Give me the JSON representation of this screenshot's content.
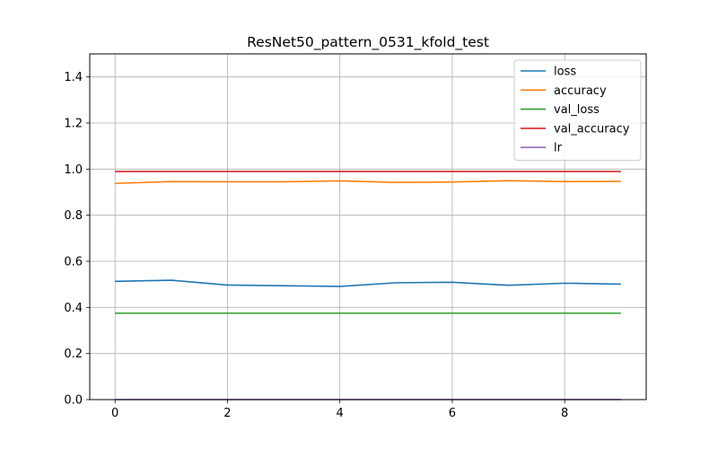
{
  "chart_data": {
    "type": "line",
    "title": "ResNet50_pattern_0531_kfold_test",
    "xlabel": "",
    "ylabel": "",
    "x": [
      0,
      1,
      2,
      3,
      4,
      5,
      6,
      7,
      8,
      9
    ],
    "xlim": [
      -0.45,
      9.45
    ],
    "ylim": [
      0.0,
      1.5
    ],
    "x_ticks": [
      "0",
      "2",
      "4",
      "6",
      "8"
    ],
    "x_tick_values": [
      0,
      2,
      4,
      6,
      8
    ],
    "y_ticks": [
      "0.0",
      "0.2",
      "0.4",
      "0.6",
      "0.8",
      "1.0",
      "1.2",
      "1.4"
    ],
    "y_tick_values": [
      0.0,
      0.2,
      0.4,
      0.6,
      0.8,
      1.0,
      1.2,
      1.4
    ],
    "grid": true,
    "legend_position": "top-right",
    "series": [
      {
        "name": "loss",
        "color": "#1f77b4",
        "values": [
          0.513,
          0.518,
          0.497,
          0.494,
          0.491,
          0.507,
          0.509,
          0.496,
          0.505,
          0.501
        ]
      },
      {
        "name": "accuracy",
        "color": "#ff7f0e",
        "values": [
          0.938,
          0.946,
          0.945,
          0.945,
          0.949,
          0.942,
          0.944,
          0.95,
          0.946,
          0.947
        ]
      },
      {
        "name": "val_loss",
        "color": "#2ca02c",
        "values": [
          0.375,
          0.375,
          0.375,
          0.375,
          0.375,
          0.375,
          0.375,
          0.375,
          0.375,
          0.375
        ]
      },
      {
        "name": "val_accuracy",
        "color": "#d62728",
        "values": [
          0.99,
          0.99,
          0.99,
          0.99,
          0.99,
          0.99,
          0.99,
          0.99,
          0.99,
          0.99
        ]
      },
      {
        "name": "lr",
        "color": "#9467bd",
        "values": [
          0.0001,
          0.0001,
          0.0001,
          0.0001,
          0.0001,
          0.0001,
          0.0001,
          0.0001,
          0.0001,
          0.0001
        ]
      }
    ]
  }
}
